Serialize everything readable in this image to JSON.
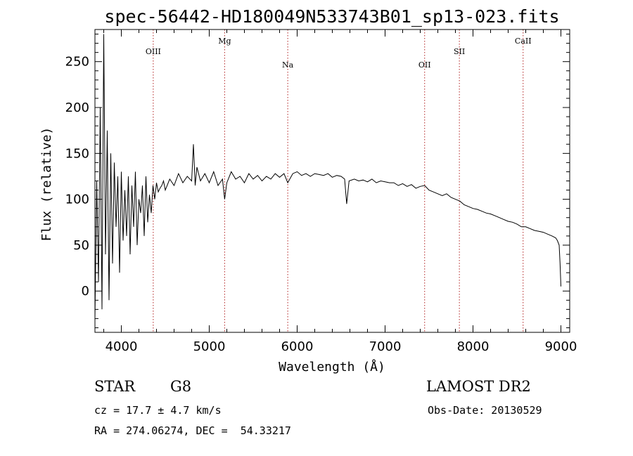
{
  "chart_data": {
    "type": "line",
    "title": "spec-56442-HD180049N533743B01_sp13-023.fits",
    "xlabel": "Wavelength (Å)",
    "ylabel": "Flux (relative)",
    "xlim": [
      3700,
      9100
    ],
    "ylim": [
      -45,
      285
    ],
    "xticks": [
      4000,
      5000,
      6000,
      7000,
      8000,
      9000
    ],
    "yticks": [
      0,
      50,
      100,
      150,
      200,
      250
    ],
    "grid": false,
    "line_color": "#000000",
    "marker_color": "#b22222",
    "markers": [
      {
        "label": "OIII",
        "x": 4363,
        "label_level": "upper"
      },
      {
        "label": "Mg",
        "x": 5175,
        "label_level": "top"
      },
      {
        "label": "Na",
        "x": 5893,
        "label_level": "lower"
      },
      {
        "label": "OII",
        "x": 7450,
        "label_level": "lower"
      },
      {
        "label": "SII",
        "x": 7845,
        "label_level": "upper"
      },
      {
        "label": "CaII",
        "x": 8570,
        "label_level": "top"
      }
    ],
    "series": [
      {
        "x": [
          3700,
          3720,
          3740,
          3760,
          3780,
          3800,
          3820,
          3840,
          3860,
          3880,
          3900,
          3920,
          3940,
          3960,
          3980,
          4000,
          4020,
          4040,
          4060,
          4080,
          4100,
          4120,
          4140,
          4160,
          4180,
          4200,
          4220,
          4240,
          4260,
          4280,
          4300,
          4320,
          4340,
          4360,
          4380,
          4400,
          4420,
          4440,
          4460,
          4480,
          4500,
          4550,
          4600,
          4650,
          4700,
          4750,
          4800,
          4820,
          4840,
          4860,
          4900,
          4950,
          5000,
          5050,
          5100,
          5150,
          5175,
          5200,
          5250,
          5300,
          5350,
          5400,
          5450,
          5500,
          5550,
          5600,
          5650,
          5700,
          5750,
          5800,
          5850,
          5893,
          5950,
          6000,
          6050,
          6100,
          6150,
          6200,
          6250,
          6300,
          6350,
          6400,
          6450,
          6500,
          6540,
          6563,
          6590,
          6650,
          6700,
          6750,
          6800,
          6850,
          6900,
          6950,
          7000,
          7050,
          7100,
          7150,
          7200,
          7250,
          7300,
          7350,
          7400,
          7450,
          7500,
          7550,
          7600,
          7650,
          7700,
          7750,
          7800,
          7850,
          7900,
          7950,
          8000,
          8050,
          8100,
          8150,
          8200,
          8250,
          8300,
          8350,
          8400,
          8450,
          8500,
          8550,
          8600,
          8650,
          8700,
          8750,
          8800,
          8850,
          8900,
          8940,
          8960,
          8980,
          8990,
          9000
        ],
        "values": [
          -30,
          120,
          10,
          200,
          -20,
          280,
          40,
          175,
          -10,
          150,
          30,
          140,
          70,
          125,
          20,
          130,
          55,
          110,
          60,
          125,
          40,
          115,
          70,
          130,
          50,
          100,
          85,
          115,
          60,
          125,
          75,
          105,
          85,
          115,
          100,
          118,
          108,
          112,
          115,
          120,
          110,
          122,
          115,
          128,
          118,
          125,
          120,
          160,
          115,
          135,
          120,
          128,
          118,
          130,
          115,
          122,
          100,
          118,
          130,
          122,
          125,
          118,
          128,
          122,
          126,
          120,
          125,
          122,
          128,
          124,
          128,
          118,
          128,
          130,
          126,
          128,
          125,
          128,
          127,
          126,
          128,
          124,
          126,
          125,
          122,
          95,
          120,
          122,
          120,
          121,
          119,
          122,
          118,
          120,
          119,
          118,
          118,
          115,
          117,
          114,
          116,
          112,
          114,
          115,
          110,
          108,
          106,
          104,
          106,
          102,
          100,
          98,
          94,
          92,
          90,
          89,
          87,
          85,
          84,
          82,
          80,
          78,
          76,
          75,
          73,
          70,
          70,
          68,
          66,
          65,
          64,
          62,
          60,
          58,
          55,
          50,
          30,
          5
        ]
      }
    ]
  },
  "info": {
    "object_type": "STAR",
    "spectral_class": "G8",
    "survey": "LAMOST DR2",
    "redshift": "cz = 17.7 ± 4.7 km/s",
    "obs_date": "Obs-Date: 20130529",
    "coords": "RA = 274.06274, DEC =  54.33217"
  }
}
